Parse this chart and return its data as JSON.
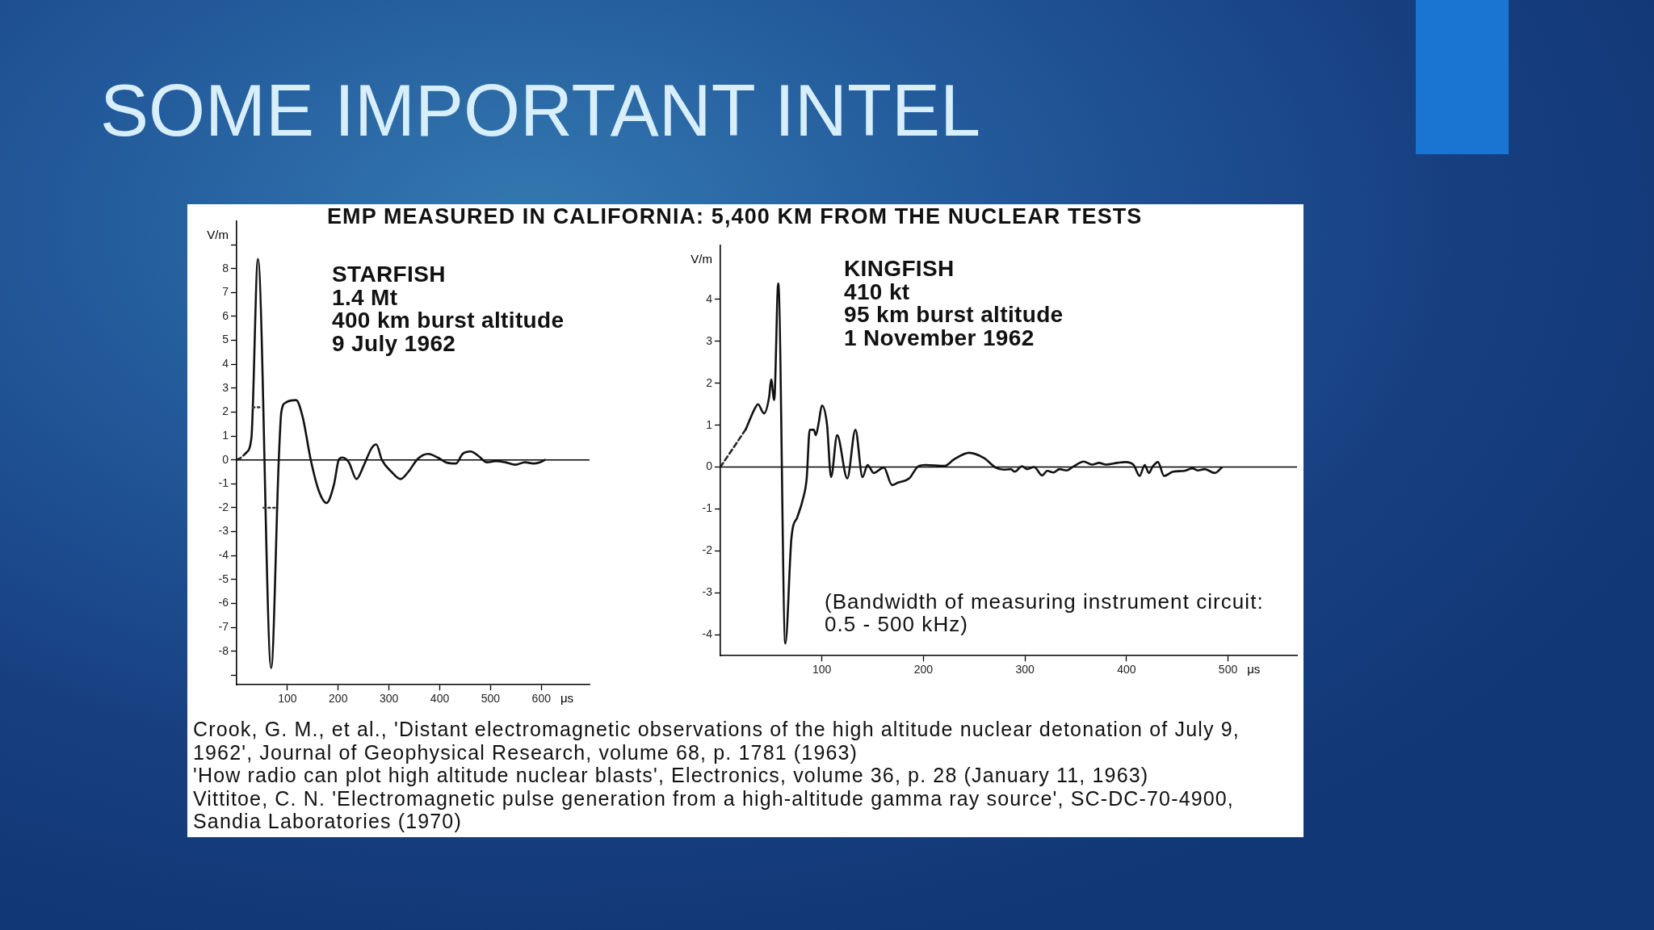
{
  "chart_data": [
    {
      "type": "line",
      "title": "SOME IMPORTANT INTEL",
      "subtitle": "EMP MEASURED IN CALIFORNIA: 5,400 KM FROM THE NUCLEAR TESTS",
      "xlabel": "μs",
      "ylabel": "V/m",
      "annotations": [
        "STARFISH\n1.4 Mt\n400 km burst altitude\n9 July 1962"
      ],
      "xlim": [
        0,
        695
      ],
      "ylim": [
        -9.4,
        10
      ],
      "xticks": [
        100,
        200,
        300,
        400,
        500,
        600
      ],
      "yticks": [
        {
          "value": -9,
          "label": null
        },
        -8,
        -7,
        -6,
        -5,
        -4,
        -3,
        -2,
        -1,
        0,
        1,
        2,
        3,
        4,
        5,
        6,
        7,
        8,
        {
          "value": 9,
          "label": null
        }
      ],
      "ref_lines": [
        {
          "axis": "y",
          "value": 0
        }
      ],
      "series": [
        {
          "color": "#262626",
          "line_style": "dashed",
          "x": [
            0,
            9,
            18
          ],
          "values": [
            0,
            0.1,
            0.28
          ]
        },
        {
          "color": "#111111",
          "x": [
            18,
            29,
            42,
            68,
            83,
            88,
            97,
            117,
            130,
            146,
            162,
            177,
            192,
            201,
            208,
            221,
            236,
            250,
            266,
            275,
            286,
            305,
            323,
            338,
            357,
            377,
            396,
            412,
            432,
            445,
            461,
            477,
            493,
            510,
            529,
            549,
            568,
            584,
            597,
            607
          ],
          "values": [
            0.28,
            0.9,
            8.4,
            -8.7,
            0,
            2.0,
            2.4,
            2.5,
            1.8,
            0,
            -1.3,
            -1.8,
            -1.0,
            0,
            0.1,
            -0.1,
            -0.8,
            -0.25,
            0.5,
            0.65,
            0,
            -0.5,
            -0.8,
            -0.5,
            0.05,
            0.25,
            0.1,
            -0.1,
            -0.15,
            0.25,
            0.35,
            0.15,
            -0.1,
            -0.05,
            -0.1,
            -0.2,
            -0.1,
            -0.15,
            -0.1,
            0
          ]
        },
        {
          "color": "#333333",
          "line_style": "dotted",
          "x": [
            32,
            49
          ],
          "values": [
            2.2,
            2.2
          ]
        },
        {
          "color": "#3d3d3d",
          "line_style": "dotted",
          "x": [
            53,
            81
          ],
          "values": [
            -2,
            -2
          ]
        }
      ]
    },
    {
      "type": "line",
      "xlabel": "μs",
      "ylabel": "V/m",
      "annotations": [
        "KINGFISH\n410 kt\n95 km burst altitude\n1 November 1962",
        "(Bandwidth of measuring instrument circuit:\n0.5 - 500 kHz)",
        "Crook, G. M., et al., 'Distant electromagnetic observations of the high altitude nuclear detonation of July 9, 1962', Journal of Geophysical Research, volume 68, p. 1781 (1963)",
        "'How radio can plot high altitude nuclear blasts', Electronics, volume 36, p. 28 (January 11, 1963)",
        "Vittitoe, C. N. 'Electromagnetic pulse generation from a high-altitude gamma ray source', SC-DC-70-4900, Sandia Laboratories (1970)"
      ],
      "xlim": [
        0,
        568
      ],
      "ylim": [
        -4.5,
        5.3
      ],
      "xticks": [
        100,
        200,
        300,
        400,
        500
      ],
      "yticks": [
        -4,
        -3,
        -2,
        -1,
        0,
        1,
        2,
        3,
        4
      ],
      "ref_lines": [
        {
          "axis": "y",
          "value": 0
        }
      ],
      "series": [
        {
          "color": "#262626",
          "line_style": "dashed",
          "x": [
            0,
            25
          ],
          "values": [
            0,
            0.9
          ]
        },
        {
          "color": "#111111",
          "x": [
            25,
            34,
            37,
            43,
            48,
            50,
            53,
            57,
            64,
            70,
            76,
            81,
            85,
            88,
            92,
            94,
            97,
            100,
            105,
            109,
            115,
            125,
            133,
            140,
            145,
            151,
            161,
            169,
            175,
            186,
            195,
            202,
            221,
            230,
            245,
            260,
            271,
            279,
            286,
            290,
            297,
            302,
            309,
            317,
            322,
            328,
            334,
            341,
            348,
            358,
            366,
            373,
            380,
            391,
            399,
            407,
            413,
            418,
            422,
            426,
            431,
            437,
            446,
            457,
            465,
            470,
            477,
            487,
            494
          ],
          "values": [
            0.9,
            1.4,
            1.5,
            1.28,
            1.67,
            2.09,
            1.6,
            4.38,
            -4.21,
            -1.69,
            -1.18,
            -0.79,
            -0.27,
            0.89,
            0.89,
            0.76,
            1.08,
            1.47,
            1.02,
            -0.24,
            0.76,
            -0.27,
            0.89,
            -0.24,
            0.05,
            -0.14,
            -0.01,
            -0.43,
            -0.37,
            -0.27,
            0.02,
            0.05,
            0.03,
            0.18,
            0.34,
            0.21,
            -0.01,
            -0.06,
            -0.05,
            -0.11,
            0.02,
            -0.05,
            0,
            -0.2,
            -0.09,
            -0.13,
            -0.05,
            -0.08,
            0.02,
            0.13,
            0.06,
            0.1,
            0.06,
            0.1,
            0.12,
            0.05,
            -0.21,
            0.05,
            -0.14,
            0.02,
            0.12,
            -0.21,
            -0.11,
            -0.09,
            -0.03,
            -0.08,
            -0.05,
            -0.14,
            -0.01
          ]
        }
      ]
    }
  ]
}
